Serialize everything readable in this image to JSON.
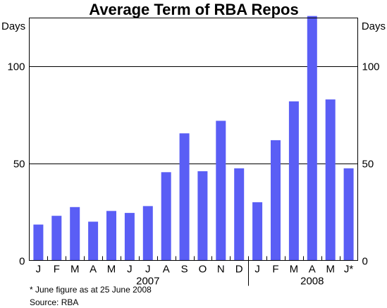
{
  "chart_data": {
    "type": "bar",
    "title": "Average Term of RBA Repos",
    "ylabel_left": "Days",
    "ylabel_right": "Days",
    "ylim": [
      0,
      125
    ],
    "yticks": [
      0,
      50,
      100
    ],
    "grid": true,
    "categories": [
      "J",
      "F",
      "M",
      "A",
      "M",
      "J",
      "J",
      "A",
      "S",
      "O",
      "N",
      "D",
      "J",
      "F",
      "M",
      "A",
      "M",
      "J*"
    ],
    "year_labels": [
      {
        "label": "2007",
        "category_index": 6
      },
      {
        "label": "2008",
        "category_index": 15
      }
    ],
    "year_divider_after_index": 11,
    "values": [
      18.5,
      23,
      27.5,
      20,
      25.5,
      24.5,
      28,
      45.5,
      65.5,
      46,
      72,
      47.5,
      30,
      62,
      82,
      126,
      83,
      47.5
    ],
    "bar_color": "#5a5ef5"
  },
  "notes": {
    "footnote": "* June figure as at 25 June 2008",
    "source": "Source: RBA"
  }
}
